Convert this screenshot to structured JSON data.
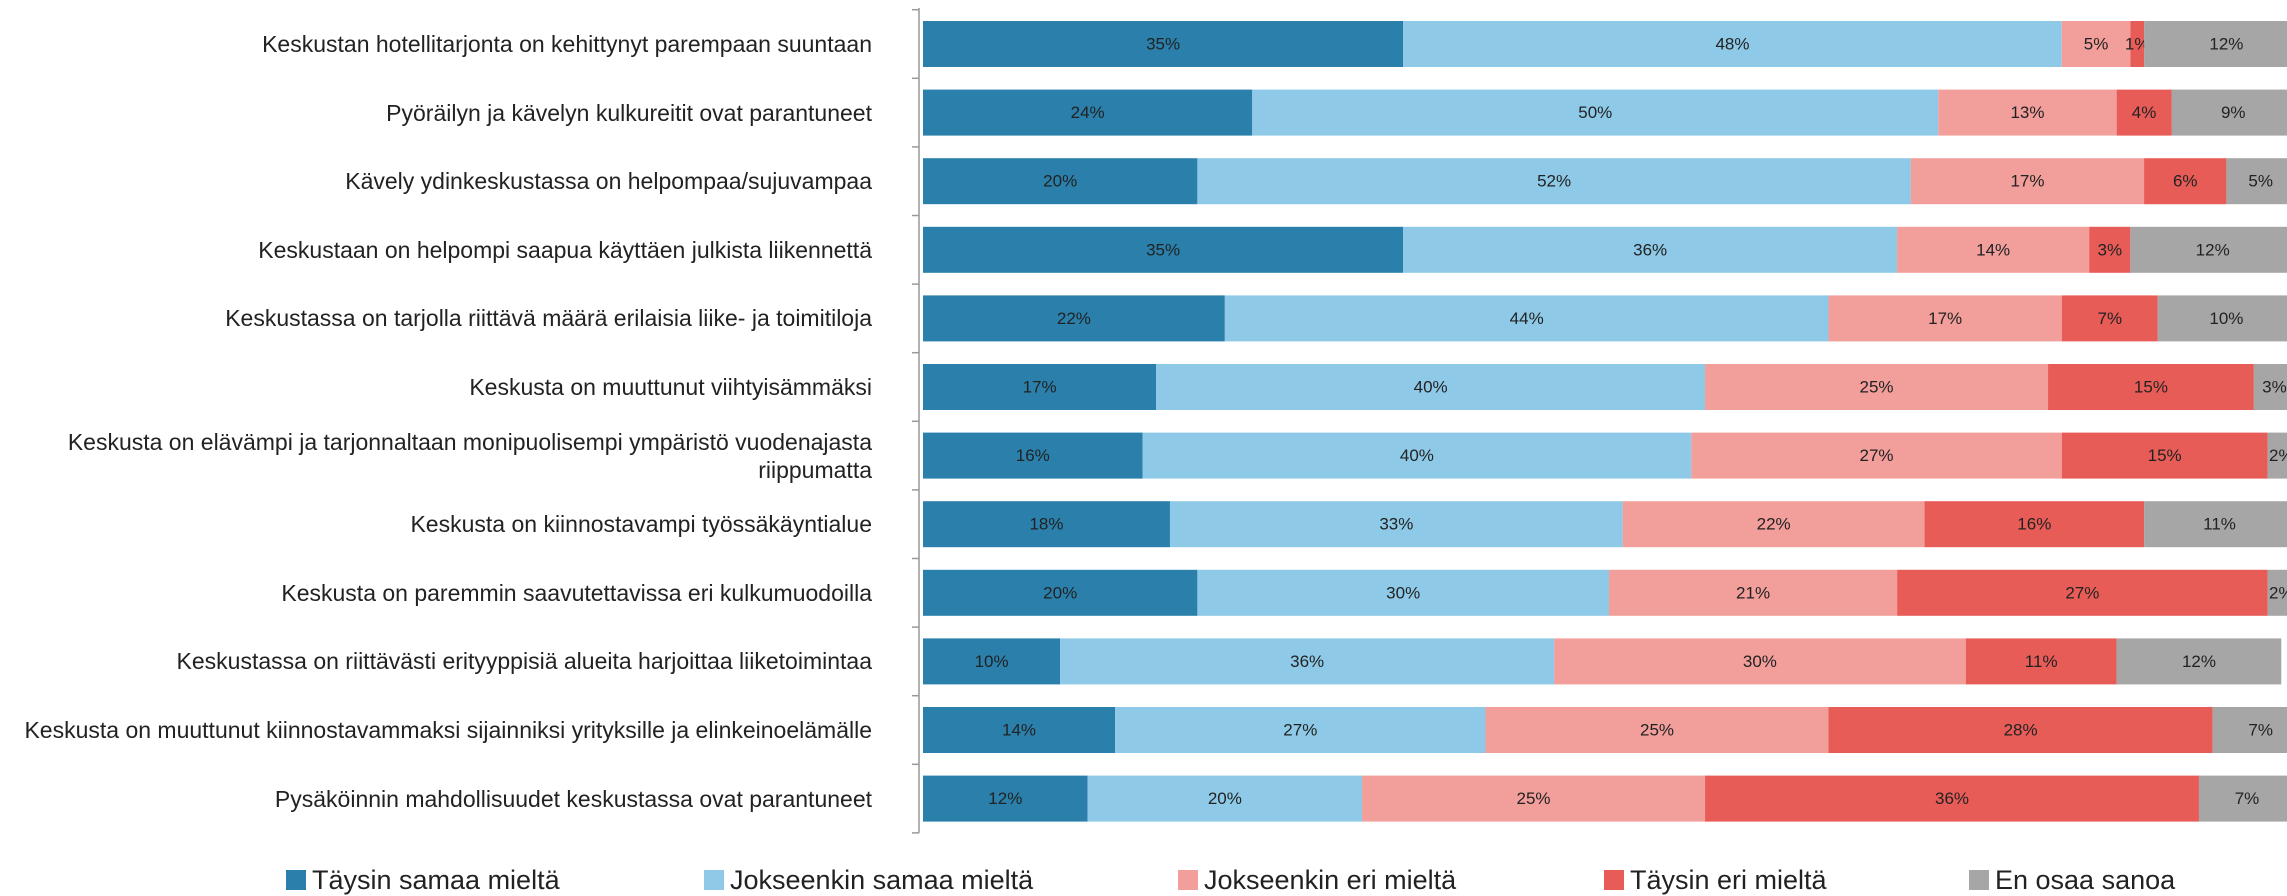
{
  "chart_data": {
    "type": "stacked_barh",
    "categories": [
      "Keskustan hotellitarjonta on kehittynyt parempaan suuntaan",
      "Pyöräilyn ja kävelyn kulkureitit ovat parantuneet",
      "Kävely ydinkeskustassa on helpompaa/sujuvampaa",
      "Keskustaan on helpompi saapua käyttäen julkista liikennettä",
      "Keskustassa on tarjolla riittävä määrä erilaisia liike- ja toimitiloja",
      "Keskusta on muuttunut viihtyisämmäksi",
      "Keskusta on elävämpi ja tarjonnaltaan monipuolisempi ympäristö vuodenajasta riippumatta",
      "Keskusta on kiinnostavampi työssäkäyntialue",
      "Keskusta on paremmin saavutettavissa eri kulkumuodoilla",
      "Keskustassa on riittävästi erityyppisiä alueita harjoittaa liiketoimintaa",
      "Keskusta on muuttunut kiinnostavammaksi sijainniksi yrityksille ja elinkeinoelämälle",
      "Pysäköinnin mahdollisuudet keskustassa ovat parantuneet"
    ],
    "series": [
      {
        "name": "Täysin samaa mieltä",
        "color": "#2a7fab",
        "values": [
          35,
          24,
          20,
          35,
          22,
          17,
          16,
          18,
          20,
          10,
          14,
          12
        ],
        "value_labels": [
          "35%",
          "24%",
          "20%",
          "35%",
          "22%",
          "17%",
          "16%",
          "18%",
          "20%",
          "10%",
          "14%",
          "12%"
        ]
      },
      {
        "name": "Jokseenkin samaa mieltä",
        "color": "#8ecae8",
        "values": [
          48,
          50,
          52,
          36,
          44,
          40,
          40,
          33,
          30,
          36,
          27,
          20
        ],
        "value_labels": [
          "48%",
          "50%",
          "52%",
          "36%",
          "44%",
          "40%",
          "40%",
          "33%",
          "30%",
          "36%",
          "27%",
          "20%"
        ]
      },
      {
        "name": "Jokseenkin eri mieltä",
        "color": "#f29f9b",
        "values": [
          5,
          13,
          17,
          14,
          17,
          25,
          27,
          22,
          21,
          30,
          25,
          25
        ],
        "value_labels": [
          "5%",
          "13%",
          "17%",
          "14%",
          "17%",
          "25%",
          "27%",
          "22%",
          "21%",
          "30%",
          "25%",
          "25%"
        ]
      },
      {
        "name": "Täysin eri mieltä",
        "color": "#e85c58",
        "values": [
          1,
          4,
          6,
          3,
          7,
          15,
          15,
          16,
          27,
          11,
          28,
          36
        ],
        "value_labels": [
          "1%",
          "4%",
          "6%",
          "3%",
          "7%",
          "15%",
          "15%",
          "16%",
          "27%",
          "11%",
          "28%",
          "36%"
        ]
      },
      {
        "name": "En osaa sanoa",
        "color": "#a6a6a6",
        "values": [
          12,
          9,
          5,
          12,
          10,
          3,
          2,
          11,
          2,
          12,
          7,
          7
        ],
        "value_labels": [
          "12%",
          "9%",
          "5%",
          "12%",
          "10%",
          "3%",
          "2%",
          "11%",
          "2%",
          "12%",
          "7%",
          "7%"
        ]
      }
    ],
    "xlim": [
      0,
      100
    ]
  }
}
